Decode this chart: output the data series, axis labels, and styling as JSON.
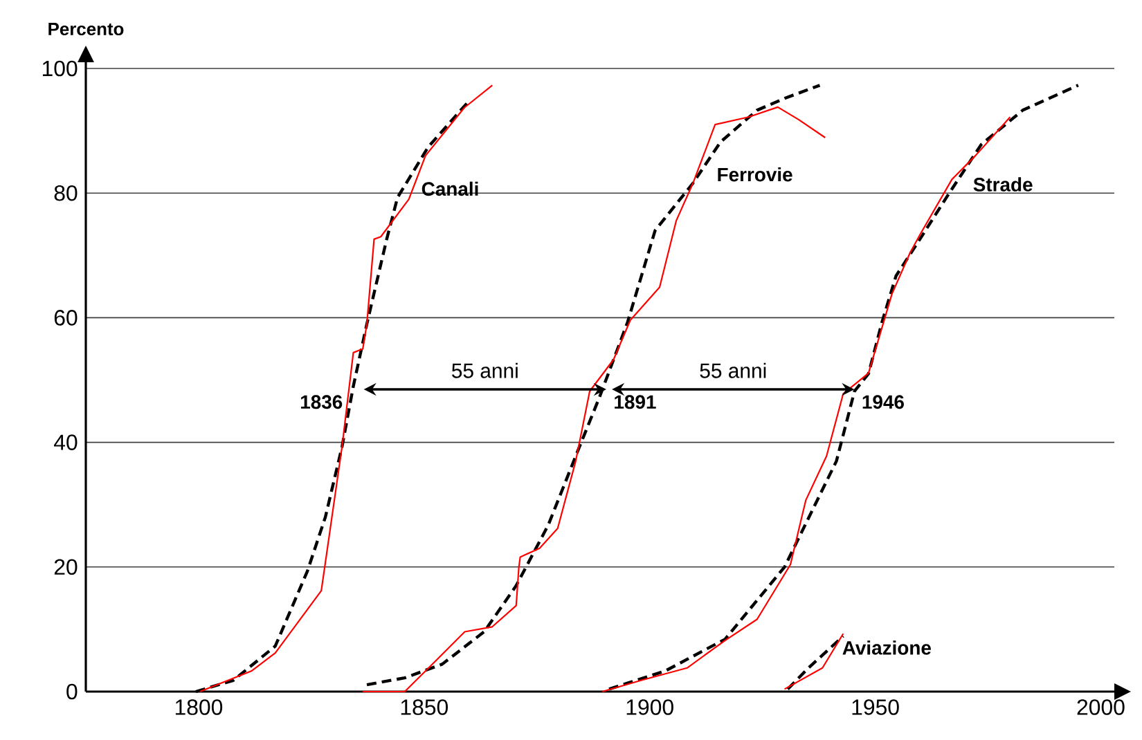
{
  "chart_data": {
    "type": "line",
    "ylabel": "Percento",
    "xlim": [
      1775,
      2003
    ],
    "ylim": [
      0,
      101
    ],
    "xticks": [
      1800,
      1850,
      1900,
      1950,
      2000
    ],
    "yticks": [
      0,
      20,
      40,
      60,
      80,
      100
    ],
    "grid": "y",
    "marker": "none",
    "series": [
      {
        "color": "#ff0000",
        "line_style": "solid",
        "x": [
          1800.3,
          1811.7,
          1817,
          1827.2,
          1828.1,
          1831.8,
          1834.3,
          1836.4,
          1837.3,
          1838.9,
          1840.4,
          1846.6,
          1850.3,
          1858.9,
          1865.1
        ],
        "values": [
          0,
          3.3,
          6.2,
          16.2,
          20.7,
          39.3,
          54.4,
          55,
          59,
          72.6,
          73,
          79,
          86,
          93.7,
          97.3
        ]
      },
      {
        "name": "Canali",
        "color": "#000000",
        "line_style": "dashed",
        "x": [
          1799.4,
          1807.7,
          1817,
          1824.1,
          1828.1,
          1831.8,
          1834.3,
          1837.3,
          1841.7,
          1844.1,
          1850.9,
          1860.2
        ],
        "values": [
          0,
          1.8,
          7.3,
          19.3,
          28,
          39.3,
          49,
          59,
          72.6,
          79.3,
          87.4,
          95
        ]
      },
      {
        "color": "#ff0000",
        "line_style": "solid",
        "x": [
          1836.4,
          1845.7,
          1852.8,
          1859,
          1865.1,
          1870.4,
          1871,
          1871.3,
          1875.6,
          1879.6,
          1883.6,
          1886.7,
          1892,
          1895.7,
          1902.2,
          1905.9,
          1909.6,
          1914.5,
          1921.9,
          1928.4,
          1933,
          1938.9
        ],
        "values": [
          0,
          0,
          5.1,
          9.6,
          10.4,
          13.8,
          20,
          21.6,
          23,
          26.2,
          37,
          48.2,
          53.3,
          59.6,
          64.9,
          75.6,
          81.6,
          91,
          92.2,
          93.8,
          91.8,
          88.9
        ]
      },
      {
        "name": "Ferrovie",
        "color": "#000000",
        "line_style": "dashed",
        "x": [
          1837.3,
          1845.7,
          1854,
          1863.3,
          1870.4,
          1877.5,
          1883.6,
          1888.9,
          1895.1,
          1901.2,
          1909.6,
          1915.7,
          1923.8,
          1929.9,
          1937.7
        ],
        "values": [
          1.1,
          2.2,
          4.4,
          9.6,
          17,
          26.7,
          37.8,
          47.3,
          59.3,
          74,
          81.6,
          88.2,
          93.3,
          95.2,
          97.3
        ]
      },
      {
        "color": "#ff0000",
        "line_style": "solid",
        "x": [
          1889.5,
          1898.1,
          1908.3,
          1916.7,
          1923.8,
          1931.2,
          1934.6,
          1939.2,
          1942.9,
          1948.5,
          1953.7,
          1957.7,
          1959.9,
          1967,
          1972.2,
          1979.9
        ],
        "values": [
          0,
          1.8,
          3.8,
          8.2,
          11.6,
          20.4,
          30.7,
          37.8,
          47.8,
          51.1,
          63.8,
          70.4,
          73.3,
          82.2,
          86,
          92.2
        ]
      },
      {
        "name": "Strade",
        "color": "#000000",
        "line_style": "dashed",
        "x": [
          1891,
          1903.4,
          1916.7,
          1929.9,
          1941.4,
          1945.4,
          1948.5,
          1951.5,
          1954.6,
          1959.9,
          1966.4,
          1973.5,
          1982.7,
          1995
        ],
        "values": [
          0.4,
          3.3,
          8.4,
          20,
          37,
          48.2,
          51,
          59.3,
          66.7,
          72.6,
          80,
          87.8,
          93.3,
          97.3
        ]
      },
      {
        "color": "#ff0000",
        "line_style": "solid",
        "x": [
          1929.9,
          1938.3,
          1942.9
        ],
        "values": [
          0.4,
          3.8,
          9.3
        ]
      },
      {
        "name": "Aviazione",
        "color": "#000000",
        "line_style": "dashed",
        "x": [
          1930.6,
          1935.2,
          1942.9
        ],
        "values": [
          0.4,
          3.8,
          8.9
        ]
      }
    ],
    "annotations": [
      {
        "text": "1836",
        "x": 1836,
        "y": 48.5
      },
      "55 anni",
      {
        "text": "1891",
        "x": 1891,
        "y": 48.5
      },
      "55 anni",
      {
        "text": "1946",
        "x": 1946,
        "y": 48.5
      }
    ]
  }
}
